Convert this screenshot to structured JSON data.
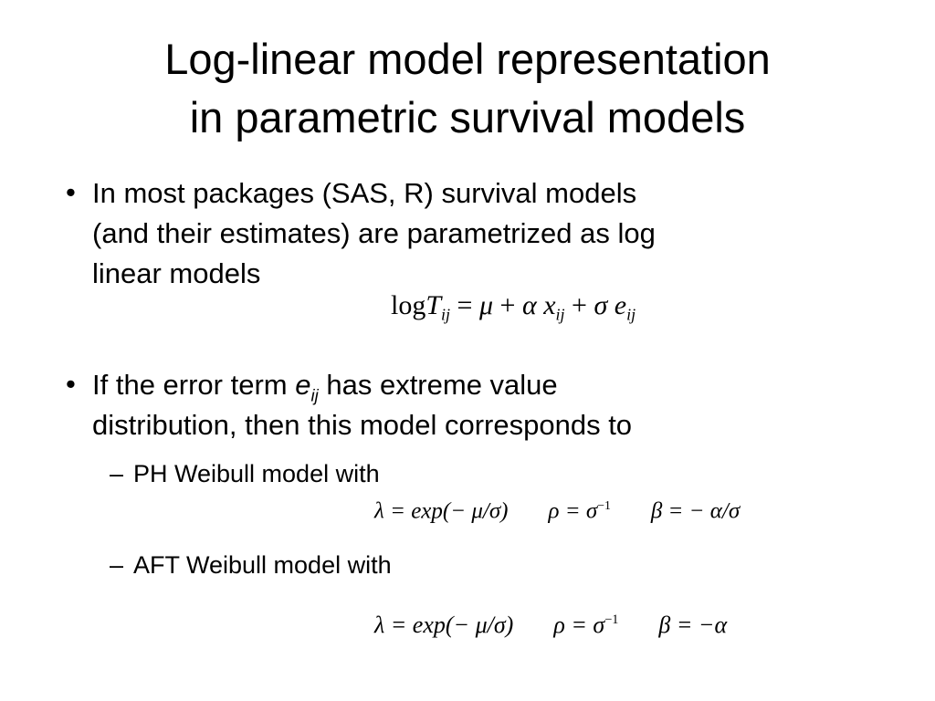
{
  "title": {
    "line1": "Log-linear model representation",
    "line2": "in parametric survival models"
  },
  "bullets": [
    {
      "lines": [
        "In most packages (SAS, R) survival models",
        "(and their estimates) are parametrized as log",
        "linear models"
      ]
    },
    {
      "prefix": "If the error term ",
      "var": "e",
      "var_sub": "ij",
      "suffix": " has extreme value",
      "line2": "distribution, then this model corresponds to"
    }
  ],
  "sub_bullets": [
    {
      "dash": "–",
      "label": "PH Weibull model with"
    },
    {
      "dash": "–",
      "label": "AFT Weibull model with"
    }
  ],
  "bullet_char": "•",
  "formulas": {
    "loglinear": {
      "log": "log",
      "T": "T",
      "ij": "ij",
      "eq": " = ",
      "mu": "μ",
      "plus1": " + ",
      "alpha": "α",
      "x": " x",
      "plus2": " + ",
      "sigma": "σ",
      "e": " e"
    },
    "ph": {
      "lambda": "λ = exp(− μ/σ)",
      "rho": "ρ = σ",
      "rho_exp": "−1",
      "beta": "β = − α/σ"
    },
    "aft": {
      "lambda": "λ = exp(− μ/σ)",
      "rho": "ρ = σ",
      "rho_exp": "−1",
      "beta": "β = −α"
    }
  }
}
